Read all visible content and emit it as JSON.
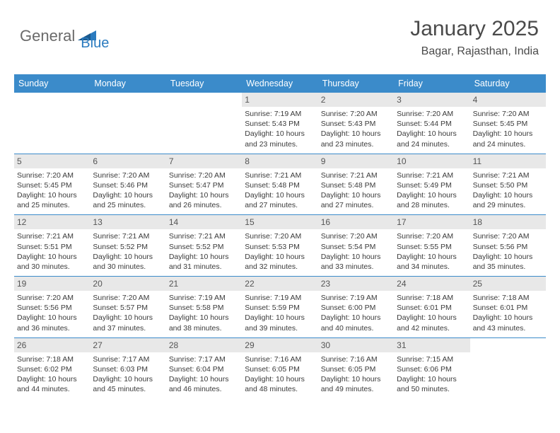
{
  "logo": {
    "text1": "General",
    "text2": "Blue"
  },
  "header": {
    "title": "January 2025",
    "location": "Bagar, Rajasthan, India"
  },
  "colors": {
    "header_bar": "#3b8bca",
    "daynum_bg": "#e8e8e8",
    "text": "#3a3a3a",
    "logo_gray": "#6a6a6a",
    "logo_blue": "#2b7bbf",
    "row_divider": "#3b8bca",
    "background": "#ffffff"
  },
  "weekdays": [
    "Sunday",
    "Monday",
    "Tuesday",
    "Wednesday",
    "Thursday",
    "Friday",
    "Saturday"
  ],
  "weeks": [
    [
      {
        "day": "",
        "sunrise": "",
        "sunset": "",
        "daylight": ""
      },
      {
        "day": "",
        "sunrise": "",
        "sunset": "",
        "daylight": ""
      },
      {
        "day": "",
        "sunrise": "",
        "sunset": "",
        "daylight": ""
      },
      {
        "day": "1",
        "sunrise": "Sunrise: 7:19 AM",
        "sunset": "Sunset: 5:43 PM",
        "daylight": "Daylight: 10 hours and 23 minutes."
      },
      {
        "day": "2",
        "sunrise": "Sunrise: 7:20 AM",
        "sunset": "Sunset: 5:43 PM",
        "daylight": "Daylight: 10 hours and 23 minutes."
      },
      {
        "day": "3",
        "sunrise": "Sunrise: 7:20 AM",
        "sunset": "Sunset: 5:44 PM",
        "daylight": "Daylight: 10 hours and 24 minutes."
      },
      {
        "day": "4",
        "sunrise": "Sunrise: 7:20 AM",
        "sunset": "Sunset: 5:45 PM",
        "daylight": "Daylight: 10 hours and 24 minutes."
      }
    ],
    [
      {
        "day": "5",
        "sunrise": "Sunrise: 7:20 AM",
        "sunset": "Sunset: 5:45 PM",
        "daylight": "Daylight: 10 hours and 25 minutes."
      },
      {
        "day": "6",
        "sunrise": "Sunrise: 7:20 AM",
        "sunset": "Sunset: 5:46 PM",
        "daylight": "Daylight: 10 hours and 25 minutes."
      },
      {
        "day": "7",
        "sunrise": "Sunrise: 7:20 AM",
        "sunset": "Sunset: 5:47 PM",
        "daylight": "Daylight: 10 hours and 26 minutes."
      },
      {
        "day": "8",
        "sunrise": "Sunrise: 7:21 AM",
        "sunset": "Sunset: 5:48 PM",
        "daylight": "Daylight: 10 hours and 27 minutes."
      },
      {
        "day": "9",
        "sunrise": "Sunrise: 7:21 AM",
        "sunset": "Sunset: 5:48 PM",
        "daylight": "Daylight: 10 hours and 27 minutes."
      },
      {
        "day": "10",
        "sunrise": "Sunrise: 7:21 AM",
        "sunset": "Sunset: 5:49 PM",
        "daylight": "Daylight: 10 hours and 28 minutes."
      },
      {
        "day": "11",
        "sunrise": "Sunrise: 7:21 AM",
        "sunset": "Sunset: 5:50 PM",
        "daylight": "Daylight: 10 hours and 29 minutes."
      }
    ],
    [
      {
        "day": "12",
        "sunrise": "Sunrise: 7:21 AM",
        "sunset": "Sunset: 5:51 PM",
        "daylight": "Daylight: 10 hours and 30 minutes."
      },
      {
        "day": "13",
        "sunrise": "Sunrise: 7:21 AM",
        "sunset": "Sunset: 5:52 PM",
        "daylight": "Daylight: 10 hours and 30 minutes."
      },
      {
        "day": "14",
        "sunrise": "Sunrise: 7:21 AM",
        "sunset": "Sunset: 5:52 PM",
        "daylight": "Daylight: 10 hours and 31 minutes."
      },
      {
        "day": "15",
        "sunrise": "Sunrise: 7:20 AM",
        "sunset": "Sunset: 5:53 PM",
        "daylight": "Daylight: 10 hours and 32 minutes."
      },
      {
        "day": "16",
        "sunrise": "Sunrise: 7:20 AM",
        "sunset": "Sunset: 5:54 PM",
        "daylight": "Daylight: 10 hours and 33 minutes."
      },
      {
        "day": "17",
        "sunrise": "Sunrise: 7:20 AM",
        "sunset": "Sunset: 5:55 PM",
        "daylight": "Daylight: 10 hours and 34 minutes."
      },
      {
        "day": "18",
        "sunrise": "Sunrise: 7:20 AM",
        "sunset": "Sunset: 5:56 PM",
        "daylight": "Daylight: 10 hours and 35 minutes."
      }
    ],
    [
      {
        "day": "19",
        "sunrise": "Sunrise: 7:20 AM",
        "sunset": "Sunset: 5:56 PM",
        "daylight": "Daylight: 10 hours and 36 minutes."
      },
      {
        "day": "20",
        "sunrise": "Sunrise: 7:20 AM",
        "sunset": "Sunset: 5:57 PM",
        "daylight": "Daylight: 10 hours and 37 minutes."
      },
      {
        "day": "21",
        "sunrise": "Sunrise: 7:19 AM",
        "sunset": "Sunset: 5:58 PM",
        "daylight": "Daylight: 10 hours and 38 minutes."
      },
      {
        "day": "22",
        "sunrise": "Sunrise: 7:19 AM",
        "sunset": "Sunset: 5:59 PM",
        "daylight": "Daylight: 10 hours and 39 minutes."
      },
      {
        "day": "23",
        "sunrise": "Sunrise: 7:19 AM",
        "sunset": "Sunset: 6:00 PM",
        "daylight": "Daylight: 10 hours and 40 minutes."
      },
      {
        "day": "24",
        "sunrise": "Sunrise: 7:18 AM",
        "sunset": "Sunset: 6:01 PM",
        "daylight": "Daylight: 10 hours and 42 minutes."
      },
      {
        "day": "25",
        "sunrise": "Sunrise: 7:18 AM",
        "sunset": "Sunset: 6:01 PM",
        "daylight": "Daylight: 10 hours and 43 minutes."
      }
    ],
    [
      {
        "day": "26",
        "sunrise": "Sunrise: 7:18 AM",
        "sunset": "Sunset: 6:02 PM",
        "daylight": "Daylight: 10 hours and 44 minutes."
      },
      {
        "day": "27",
        "sunrise": "Sunrise: 7:17 AM",
        "sunset": "Sunset: 6:03 PM",
        "daylight": "Daylight: 10 hours and 45 minutes."
      },
      {
        "day": "28",
        "sunrise": "Sunrise: 7:17 AM",
        "sunset": "Sunset: 6:04 PM",
        "daylight": "Daylight: 10 hours and 46 minutes."
      },
      {
        "day": "29",
        "sunrise": "Sunrise: 7:16 AM",
        "sunset": "Sunset: 6:05 PM",
        "daylight": "Daylight: 10 hours and 48 minutes."
      },
      {
        "day": "30",
        "sunrise": "Sunrise: 7:16 AM",
        "sunset": "Sunset: 6:05 PM",
        "daylight": "Daylight: 10 hours and 49 minutes."
      },
      {
        "day": "31",
        "sunrise": "Sunrise: 7:15 AM",
        "sunset": "Sunset: 6:06 PM",
        "daylight": "Daylight: 10 hours and 50 minutes."
      },
      {
        "day": "",
        "sunrise": "",
        "sunset": "",
        "daylight": ""
      }
    ]
  ]
}
